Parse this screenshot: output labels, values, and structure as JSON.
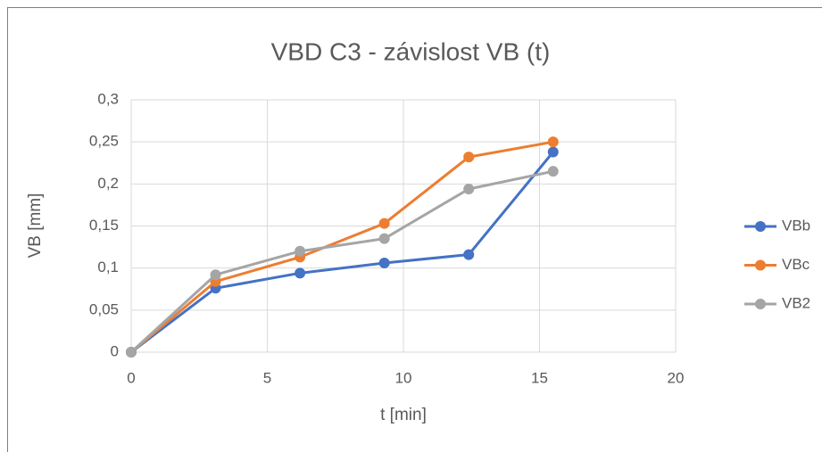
{
  "chart_data": {
    "type": "line",
    "title": "VBD C3 - závislost VB (t)",
    "x_label": "t [min]",
    "y_label": "VB [mm]",
    "x": [
      0,
      3.1,
      6.2,
      9.3,
      12.4,
      15.5
    ],
    "series": [
      {
        "name": "VBb",
        "color": "#4472c4",
        "values": [
          0,
          0.076,
          0.094,
          0.106,
          0.116,
          0.238
        ]
      },
      {
        "name": "VBc",
        "color": "#ed7d31",
        "values": [
          0,
          0.084,
          0.113,
          0.153,
          0.232,
          0.25
        ]
      },
      {
        "name": "VB2",
        "color": "#a5a5a5",
        "values": [
          0,
          0.092,
          0.12,
          0.135,
          0.194,
          0.215
        ]
      }
    ],
    "xlim": [
      0,
      20
    ],
    "xticks": [
      0,
      5,
      10,
      15,
      20
    ],
    "ylim": [
      0,
      0.3
    ],
    "yticks": [
      0,
      {
        "value": 0.05,
        "label": "0,05"
      },
      {
        "value": 0.1,
        "label": "0,1"
      },
      {
        "value": 0.15,
        "label": "0,15"
      },
      {
        "value": 0.2,
        "label": "0,2"
      },
      {
        "value": 0.25,
        "label": "0,25"
      },
      {
        "value": 0.3,
        "label": "0,3"
      }
    ],
    "grid": true,
    "legend": "right"
  }
}
